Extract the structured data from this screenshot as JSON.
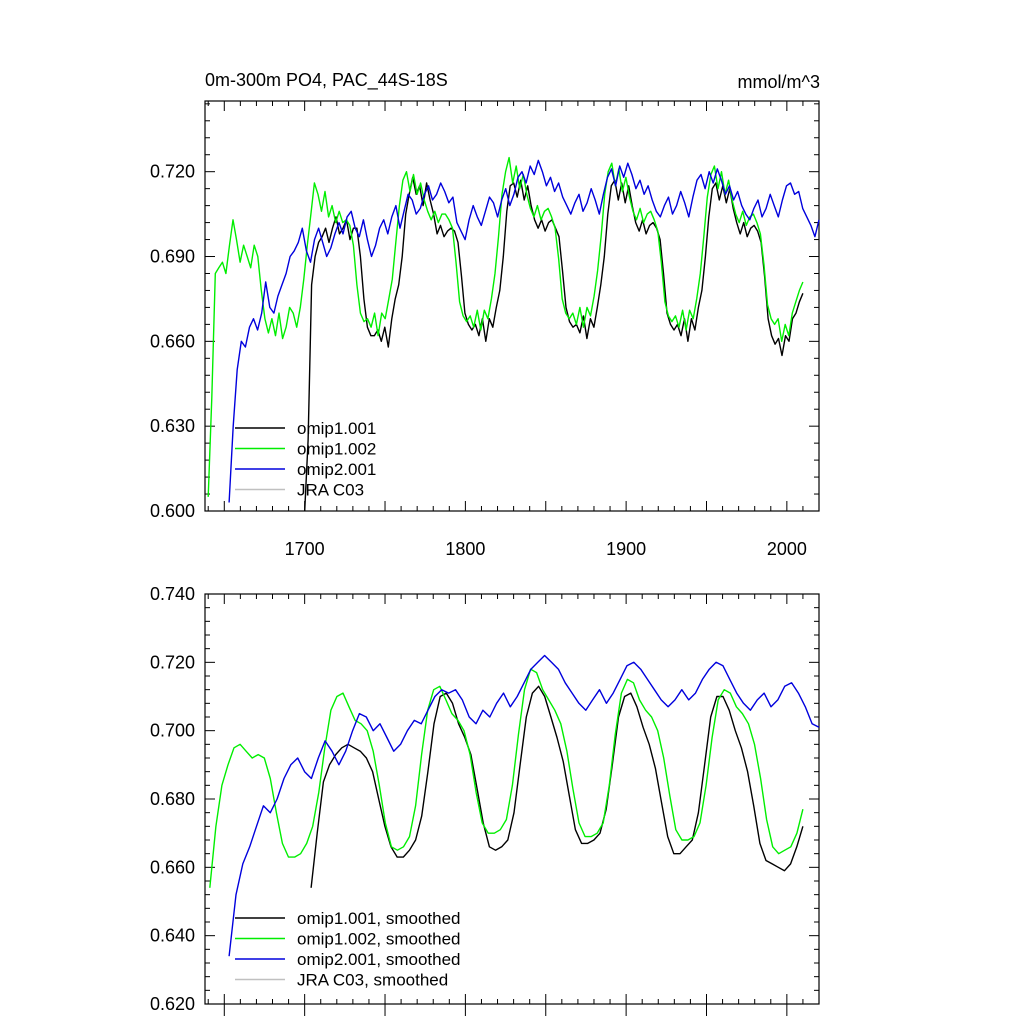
{
  "colors": {
    "omip1_001": "#000000",
    "omip1_002": "#00ee00",
    "omip2_001": "#0000dd",
    "jra_c03": "#c0c0c0"
  },
  "chart_data": [
    {
      "type": "line",
      "title": "0m-300m PO4, PAC_44S-18S",
      "units": "mmol/m^3",
      "xlim": [
        1638,
        2020
      ],
      "ylim": [
        0.6,
        0.745
      ],
      "yticks": [
        "0.600",
        "0.630",
        "0.660",
        "0.690",
        "0.720"
      ],
      "xticks": [
        "1700",
        "1800",
        "1900",
        "2000"
      ],
      "legend_position": "bottom-left",
      "series": [
        {
          "name": "omip1.001",
          "color": "#000000",
          "start": 1700,
          "end": 2010,
          "values": [
            0.6,
            0.625,
            0.68,
            0.69,
            0.695,
            0.697,
            0.7,
            0.695,
            0.7,
            0.704,
            0.698,
            0.7,
            0.703,
            0.696,
            0.7,
            0.7,
            0.69,
            0.675,
            0.665,
            0.662,
            0.662,
            0.664,
            0.66,
            0.665,
            0.658,
            0.668,
            0.675,
            0.68,
            0.69,
            0.705,
            0.712,
            0.718,
            0.712,
            0.715,
            0.708,
            0.716,
            0.71,
            0.705,
            0.698,
            0.701,
            0.697,
            0.699,
            0.7,
            0.699,
            0.695,
            0.683,
            0.67,
            0.666,
            0.664,
            0.666,
            0.662,
            0.668,
            0.66,
            0.668,
            0.665,
            0.672,
            0.678,
            0.69,
            0.706,
            0.715,
            0.716,
            0.711,
            0.717,
            0.71,
            0.715,
            0.708,
            0.703,
            0.7,
            0.703,
            0.699,
            0.702,
            0.703,
            0.7,
            0.697,
            0.685,
            0.672,
            0.667,
            0.665,
            0.666,
            0.663,
            0.669,
            0.661,
            0.668,
            0.665,
            0.672,
            0.68,
            0.69,
            0.705,
            0.715,
            0.717,
            0.71,
            0.716,
            0.709,
            0.715,
            0.708,
            0.702,
            0.699,
            0.703,
            0.698,
            0.701,
            0.702,
            0.7,
            0.696,
            0.684,
            0.67,
            0.666,
            0.664,
            0.666,
            0.662,
            0.668,
            0.66,
            0.668,
            0.664,
            0.672,
            0.678,
            0.69,
            0.704,
            0.714,
            0.716,
            0.71,
            0.715,
            0.709,
            0.714,
            0.707,
            0.702,
            0.698,
            0.702,
            0.697,
            0.7,
            0.701,
            0.699,
            0.695,
            0.683,
            0.668,
            0.662,
            0.659,
            0.661,
            0.655,
            0.662,
            0.66,
            0.668,
            0.67,
            0.674,
            0.677
          ]
        },
        {
          "name": "omip1.002",
          "color": "#00ee00",
          "start": 1640,
          "end": 2010,
          "values": [
            0.605,
            0.64,
            0.684,
            0.686,
            0.688,
            0.684,
            0.694,
            0.703,
            0.696,
            0.688,
            0.694,
            0.69,
            0.686,
            0.694,
            0.69,
            0.678,
            0.668,
            0.663,
            0.668,
            0.662,
            0.67,
            0.661,
            0.665,
            0.672,
            0.67,
            0.665,
            0.672,
            0.682,
            0.694,
            0.705,
            0.716,
            0.712,
            0.706,
            0.713,
            0.704,
            0.708,
            0.702,
            0.706,
            0.702,
            0.703,
            0.701,
            0.694,
            0.68,
            0.67,
            0.667,
            0.668,
            0.665,
            0.67,
            0.662,
            0.67,
            0.668,
            0.675,
            0.682,
            0.695,
            0.708,
            0.717,
            0.72,
            0.713,
            0.719,
            0.712,
            0.716,
            0.71,
            0.706,
            0.703,
            0.706,
            0.702,
            0.705,
            0.705,
            0.703,
            0.7,
            0.688,
            0.674,
            0.669,
            0.667,
            0.669,
            0.665,
            0.671,
            0.664,
            0.671,
            0.668,
            0.675,
            0.684,
            0.697,
            0.712,
            0.72,
            0.725,
            0.716,
            0.722,
            0.714,
            0.719,
            0.712,
            0.707,
            0.704,
            0.708,
            0.703,
            0.706,
            0.707,
            0.704,
            0.7,
            0.689,
            0.675,
            0.67,
            0.668,
            0.67,
            0.666,
            0.672,
            0.665,
            0.672,
            0.669,
            0.676,
            0.685,
            0.697,
            0.712,
            0.72,
            0.723,
            0.715,
            0.721,
            0.713,
            0.718,
            0.711,
            0.706,
            0.703,
            0.707,
            0.702,
            0.705,
            0.706,
            0.703,
            0.699,
            0.688,
            0.674,
            0.669,
            0.667,
            0.669,
            0.665,
            0.671,
            0.664,
            0.671,
            0.668,
            0.675,
            0.684,
            0.697,
            0.711,
            0.719,
            0.722,
            0.714,
            0.72,
            0.712,
            0.717,
            0.71,
            0.705,
            0.702,
            0.706,
            0.701,
            0.704,
            0.705,
            0.702,
            0.698,
            0.687,
            0.673,
            0.668,
            0.666,
            0.668,
            0.66,
            0.666,
            0.662,
            0.67,
            0.674,
            0.678,
            0.681
          ]
        },
        {
          "name": "omip2.001",
          "color": "#0000dd",
          "start": 1653,
          "end": 2020,
          "values": [
            0.603,
            0.63,
            0.65,
            0.66,
            0.658,
            0.665,
            0.668,
            0.664,
            0.67,
            0.681,
            0.672,
            0.67,
            0.676,
            0.68,
            0.684,
            0.69,
            0.692,
            0.695,
            0.7,
            0.692,
            0.688,
            0.696,
            0.7,
            0.695,
            0.69,
            0.693,
            0.698,
            0.702,
            0.698,
            0.704,
            0.706,
            0.7,
            0.697,
            0.703,
            0.696,
            0.69,
            0.694,
            0.7,
            0.703,
            0.698,
            0.704,
            0.708,
            0.7,
            0.706,
            0.712,
            0.71,
            0.705,
            0.707,
            0.712,
            0.715,
            0.71,
            0.712,
            0.716,
            0.713,
            0.709,
            0.711,
            0.702,
            0.699,
            0.696,
            0.703,
            0.708,
            0.704,
            0.701,
            0.706,
            0.711,
            0.709,
            0.704,
            0.71,
            0.714,
            0.708,
            0.712,
            0.718,
            0.72,
            0.716,
            0.722,
            0.719,
            0.724,
            0.72,
            0.715,
            0.718,
            0.713,
            0.716,
            0.711,
            0.708,
            0.705,
            0.709,
            0.712,
            0.706,
            0.709,
            0.714,
            0.71,
            0.705,
            0.712,
            0.718,
            0.721,
            0.715,
            0.722,
            0.718,
            0.723,
            0.719,
            0.714,
            0.717,
            0.712,
            0.715,
            0.71,
            0.706,
            0.704,
            0.708,
            0.711,
            0.705,
            0.708,
            0.713,
            0.709,
            0.704,
            0.711,
            0.717,
            0.719,
            0.714,
            0.72,
            0.716,
            0.721,
            0.717,
            0.712,
            0.715,
            0.71,
            0.713,
            0.708,
            0.705,
            0.703,
            0.707,
            0.71,
            0.704,
            0.707,
            0.712,
            0.708,
            0.704,
            0.71,
            0.715,
            0.716,
            0.712,
            0.713,
            0.707,
            0.704,
            0.701,
            0.697,
            0.703
          ]
        },
        {
          "name": "JRA C03",
          "color": "#c0c0c0",
          "values": []
        }
      ]
    },
    {
      "type": "line",
      "title": "",
      "xlim": [
        1638,
        2020
      ],
      "ylim": [
        0.62,
        0.74
      ],
      "yticks": [
        "0.620",
        "0.640",
        "0.660",
        "0.680",
        "0.700",
        "0.720",
        "0.740"
      ],
      "legend_position": "bottom-left",
      "series": [
        {
          "name": "omip1.001, smoothed",
          "color": "#000000",
          "start": 1704,
          "end": 2010,
          "values": [
            0.654,
            0.67,
            0.685,
            0.69,
            0.693,
            0.695,
            0.696,
            0.695,
            0.694,
            0.692,
            0.688,
            0.68,
            0.672,
            0.666,
            0.663,
            0.663,
            0.665,
            0.668,
            0.675,
            0.688,
            0.702,
            0.71,
            0.711,
            0.708,
            0.702,
            0.698,
            0.693,
            0.683,
            0.673,
            0.666,
            0.665,
            0.666,
            0.668,
            0.676,
            0.69,
            0.704,
            0.711,
            0.713,
            0.71,
            0.704,
            0.698,
            0.691,
            0.681,
            0.671,
            0.667,
            0.667,
            0.668,
            0.67,
            0.677,
            0.69,
            0.704,
            0.71,
            0.711,
            0.707,
            0.701,
            0.696,
            0.689,
            0.679,
            0.669,
            0.664,
            0.664,
            0.666,
            0.668,
            0.676,
            0.69,
            0.704,
            0.71,
            0.71,
            0.706,
            0.7,
            0.695,
            0.688,
            0.678,
            0.667,
            0.662,
            0.661,
            0.66,
            0.659,
            0.661,
            0.666,
            0.672
          ]
        },
        {
          "name": "omip1.002, smoothed",
          "color": "#00ee00",
          "start": 1641,
          "end": 2010,
          "values": [
            0.654,
            0.672,
            0.684,
            0.69,
            0.695,
            0.696,
            0.694,
            0.692,
            0.693,
            0.692,
            0.686,
            0.676,
            0.667,
            0.663,
            0.663,
            0.664,
            0.667,
            0.672,
            0.682,
            0.695,
            0.706,
            0.71,
            0.711,
            0.707,
            0.703,
            0.702,
            0.7,
            0.694,
            0.684,
            0.673,
            0.666,
            0.665,
            0.666,
            0.669,
            0.678,
            0.693,
            0.706,
            0.712,
            0.713,
            0.709,
            0.705,
            0.703,
            0.7,
            0.693,
            0.682,
            0.673,
            0.67,
            0.67,
            0.671,
            0.674,
            0.684,
            0.699,
            0.712,
            0.718,
            0.717,
            0.712,
            0.709,
            0.706,
            0.702,
            0.694,
            0.683,
            0.673,
            0.669,
            0.669,
            0.67,
            0.673,
            0.684,
            0.699,
            0.711,
            0.715,
            0.714,
            0.709,
            0.706,
            0.704,
            0.7,
            0.692,
            0.681,
            0.671,
            0.668,
            0.668,
            0.669,
            0.673,
            0.684,
            0.698,
            0.709,
            0.712,
            0.711,
            0.707,
            0.705,
            0.702,
            0.696,
            0.686,
            0.674,
            0.666,
            0.664,
            0.665,
            0.666,
            0.67,
            0.677
          ]
        },
        {
          "name": "omip2.001, smoothed",
          "color": "#0000dd",
          "start": 1653,
          "end": 2020,
          "values": [
            0.634,
            0.652,
            0.661,
            0.666,
            0.672,
            0.678,
            0.676,
            0.68,
            0.686,
            0.69,
            0.692,
            0.688,
            0.686,
            0.692,
            0.697,
            0.694,
            0.69,
            0.694,
            0.7,
            0.705,
            0.704,
            0.7,
            0.702,
            0.698,
            0.694,
            0.696,
            0.7,
            0.703,
            0.702,
            0.706,
            0.71,
            0.712,
            0.711,
            0.712,
            0.709,
            0.704,
            0.702,
            0.706,
            0.704,
            0.708,
            0.711,
            0.707,
            0.71,
            0.714,
            0.718,
            0.72,
            0.722,
            0.72,
            0.718,
            0.714,
            0.711,
            0.708,
            0.706,
            0.709,
            0.712,
            0.708,
            0.711,
            0.715,
            0.719,
            0.72,
            0.718,
            0.715,
            0.712,
            0.709,
            0.707,
            0.709,
            0.712,
            0.709,
            0.711,
            0.715,
            0.718,
            0.72,
            0.719,
            0.715,
            0.711,
            0.708,
            0.706,
            0.709,
            0.711,
            0.707,
            0.709,
            0.713,
            0.714,
            0.711,
            0.707,
            0.702,
            0.701
          ]
        },
        {
          "name": "JRA C03, smoothed",
          "color": "#c0c0c0",
          "values": []
        }
      ]
    }
  ]
}
